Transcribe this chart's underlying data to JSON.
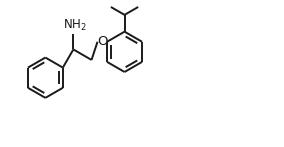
{
  "bg_color": "#ffffff",
  "line_color": "#1a1a1a",
  "line_width": 1.4,
  "font_size": 8.5,
  "fig_width": 2.84,
  "fig_height": 1.47,
  "dpi": 100,
  "xlim": [
    0,
    10
  ],
  "ylim": [
    0,
    5.2
  ]
}
